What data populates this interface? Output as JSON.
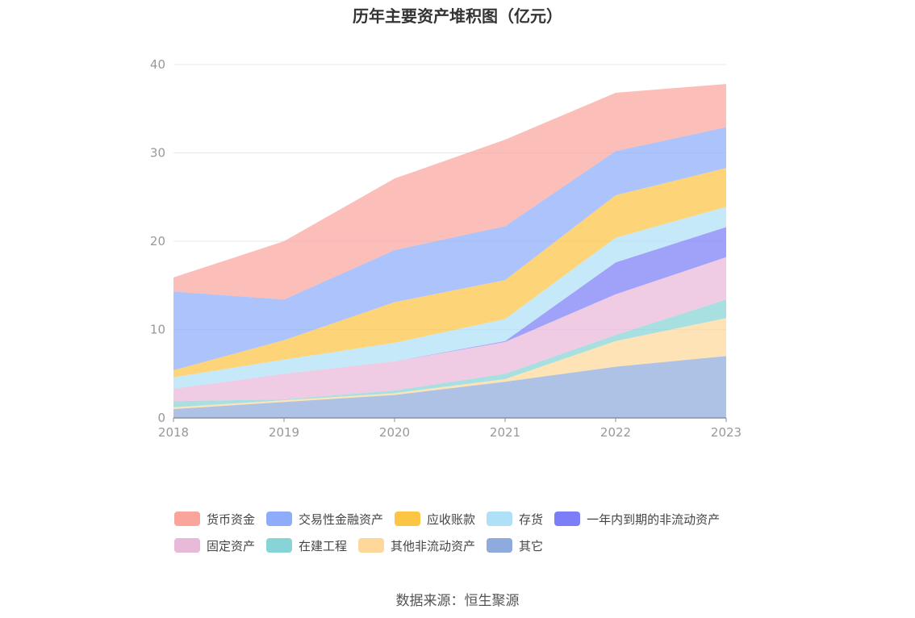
{
  "title": "历年主要资产堆积图（亿元）",
  "source": "数据来源：恒生聚源",
  "chart_data": {
    "type": "area",
    "stacked": true,
    "title": "历年主要资产堆积图（亿元）",
    "x": [
      "2018",
      "2019",
      "2020",
      "2021",
      "2022",
      "2023"
    ],
    "ylim": [
      0,
      40
    ],
    "yticks": [
      "0",
      "10",
      "20",
      "30",
      "40"
    ],
    "grid": true,
    "legend_position": "bottom",
    "series": [
      {
        "name": "其它",
        "color": "#8faadc",
        "values": [
          1.0,
          1.8,
          2.6,
          4.1,
          5.8,
          7.0
        ]
      },
      {
        "name": "其他非流动资产",
        "color": "#fdd89a",
        "values": [
          0.2,
          0.2,
          0.2,
          0.3,
          2.9,
          4.3
        ]
      },
      {
        "name": "在建工程",
        "color": "#86d4d6",
        "values": [
          0.7,
          0.1,
          0.3,
          0.6,
          0.7,
          2.1
        ]
      },
      {
        "name": "固定资产",
        "color": "#e9b9d9",
        "values": [
          1.4,
          2.9,
          3.3,
          3.6,
          4.6,
          4.8
        ]
      },
      {
        "name": "一年内到期的非流动资产",
        "color": "#7b7ef6",
        "values": [
          0.0,
          0.0,
          0.0,
          0.1,
          3.6,
          3.4
        ]
      },
      {
        "name": "存货",
        "color": "#aee0f7",
        "values": [
          1.3,
          1.6,
          2.1,
          2.5,
          2.8,
          2.3
        ]
      },
      {
        "name": "应收账款",
        "color": "#fcc544",
        "values": [
          0.8,
          2.2,
          4.6,
          4.4,
          4.8,
          4.4
        ]
      },
      {
        "name": "交易性金融资产",
        "color": "#8eacfa",
        "values": [
          8.9,
          4.6,
          5.9,
          6.1,
          5.0,
          4.6
        ]
      },
      {
        "name": "货币资金",
        "color": "#f9a59c",
        "values": [
          1.6,
          6.6,
          8.1,
          9.8,
          6.6,
          4.9
        ]
      }
    ]
  },
  "legend_rows": [
    [
      {
        "name": "货币资金",
        "color": "#f9a59c"
      },
      {
        "name": "交易性金融资产",
        "color": "#8eacfa"
      },
      {
        "name": "应收账款",
        "color": "#fcc544"
      },
      {
        "name": "存货",
        "color": "#aee0f7"
      },
      {
        "name": "一年内到期的非流动资产",
        "color": "#7b7ef6"
      }
    ],
    [
      {
        "name": "固定资产",
        "color": "#e9b9d9"
      },
      {
        "name": "在建工程",
        "color": "#86d4d6"
      },
      {
        "name": "其他非流动资产",
        "color": "#fdd89a"
      },
      {
        "name": "其它",
        "color": "#8faadc"
      }
    ]
  ]
}
